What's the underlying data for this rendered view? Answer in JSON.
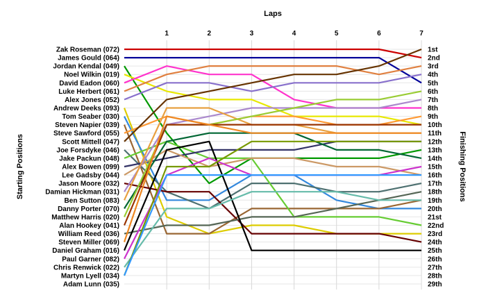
{
  "chart_data": {
    "type": "line",
    "title": "Laps",
    "xlabel": "Laps",
    "ylabel_left": "Starting Positions",
    "ylabel_right": "Finishing Positions",
    "x": [
      0,
      1,
      2,
      3,
      4,
      5,
      6,
      7
    ],
    "x_tick_labels": [
      "1",
      "2",
      "3",
      "4",
      "5",
      "6",
      "7"
    ],
    "ylim": [
      1,
      29
    ],
    "y_inverted": true,
    "grid": true,
    "finishing_position_labels": [
      "1st",
      "2nd",
      "3rd",
      "4th",
      "5th",
      "6th",
      "7th",
      "8th",
      "9th",
      "10th",
      "11th",
      "12th",
      "13th",
      "14th",
      "15th",
      "16th",
      "17th",
      "18th",
      "19th",
      "20th",
      "21st",
      "22nd",
      "23rd",
      "24th",
      "25th",
      "26th",
      "27th",
      "28th",
      "29th"
    ],
    "series": [
      {
        "name": "Zak Roseman (072)",
        "color": "#cc0000",
        "values": [
          1,
          1,
          1,
          1,
          1,
          1,
          1,
          2
        ]
      },
      {
        "name": "James Gould (064)",
        "color": "#000099",
        "values": [
          2,
          2,
          2,
          2,
          2,
          2,
          2,
          5
        ]
      },
      {
        "name": "Jordan Kendal (049)",
        "color": "#009900",
        "values": [
          3,
          11,
          17,
          14,
          14,
          14,
          14,
          13
        ]
      },
      {
        "name": "Noel Wilkin (019)",
        "color": "#e8e800",
        "values": [
          4,
          6,
          7,
          7,
          9,
          9,
          9,
          10
        ]
      },
      {
        "name": "David Eadon (060)",
        "color": "#ff33cc",
        "values": [
          5,
          3,
          4,
          4,
          7,
          8,
          8,
          8
        ]
      },
      {
        "name": "Luke Herbert (061)",
        "color": "#e08040",
        "values": [
          6,
          4,
          3,
          3,
          3,
          3,
          4,
          3
        ]
      },
      {
        "name": "Alex Jones (052)",
        "color": "#8870cc",
        "values": [
          7,
          5,
          5,
          6,
          5,
          5,
          5,
          4
        ]
      },
      {
        "name": "Andrew Deeks (093)",
        "color": "#ddcc00",
        "values": [
          8,
          21,
          23,
          22,
          22,
          23,
          23,
          23
        ]
      },
      {
        "name": "Tom Seaber (030)",
        "color": "#3388dd",
        "values": [
          9,
          19,
          19,
          16,
          16,
          19,
          20,
          20
        ]
      },
      {
        "name": "Steven Napier (039)",
        "color": "#996633",
        "values": [
          10,
          23,
          23,
          20,
          20,
          20,
          20,
          19
        ]
      },
      {
        "name": "Steve Sawford (055)",
        "color": "#ff9933",
        "values": [
          11,
          9,
          10,
          9,
          9,
          10,
          10,
          9
        ]
      },
      {
        "name": "Scott Mittell (047)",
        "color": "#663300",
        "values": [
          12,
          7,
          6,
          5,
          4,
          4,
          3,
          1
        ]
      },
      {
        "name": "Joe Forsdyke (046)",
        "color": "#4d7070",
        "values": [
          13,
          18,
          20,
          17,
          17,
          18,
          18,
          17
        ]
      },
      {
        "name": "Jake Packun (048)",
        "color": "#66cc33",
        "values": [
          14,
          12,
          14,
          14,
          21,
          21,
          21,
          22
        ]
      },
      {
        "name": "Alex Bowen (099)",
        "color": "#333366",
        "values": [
          15,
          14,
          13,
          13,
          13,
          12,
          12,
          12
        ]
      },
      {
        "name": "Lee Gadsby (044)",
        "color": "#cc9966",
        "values": [
          16,
          13,
          15,
          14,
          14,
          15,
          15,
          16
        ]
      },
      {
        "name": "Jason Moore (032)",
        "color": "#660000",
        "values": [
          17,
          18,
          18,
          23,
          23,
          23,
          23,
          24
        ]
      },
      {
        "name": "Damian Hickman (031)",
        "color": "#aa88cc",
        "values": [
          18,
          10,
          9,
          8,
          8,
          8,
          8,
          7
        ]
      },
      {
        "name": "Ben Sutton (083)",
        "color": "#e8a040",
        "values": [
          19,
          8,
          8,
          10,
          10,
          11,
          11,
          11
        ]
      },
      {
        "name": "Danny Porter (070)",
        "color": "#006633",
        "values": [
          20,
          12,
          11,
          11,
          11,
          13,
          13,
          14
        ]
      },
      {
        "name": "Matthew Harris (020)",
        "color": "#99cc33",
        "values": [
          21,
          10,
          10,
          9,
          8,
          7,
          7,
          6
        ]
      },
      {
        "name": "Alan Hookey (041)",
        "color": "#993300",
        "values": [
          22,
          10,
          10,
          10,
          10,
          10,
          10,
          10
        ]
      },
      {
        "name": "William Reed (036)",
        "color": "#556655",
        "values": [
          23,
          22,
          22,
          21,
          21,
          20,
          19,
          18
        ]
      },
      {
        "name": "Steven Miller (069)",
        "color": "#ee8822",
        "values": [
          24,
          9,
          10,
          11,
          11,
          11,
          11,
          11
        ]
      },
      {
        "name": "Daniel Graham (016)",
        "color": "#000000",
        "values": [
          25,
          13,
          12,
          25,
          25,
          25,
          25,
          25
        ]
      },
      {
        "name": "Paul Garner (082)",
        "color": "#cc33cc",
        "values": [
          26,
          16,
          14,
          16,
          16,
          16,
          16,
          15
        ]
      },
      {
        "name": "Chris Renwick (022)",
        "color": "#66bbaa",
        "values": [
          27,
          20,
          20,
          18,
          18,
          18,
          19,
          19
        ]
      },
      {
        "name": "Martyn Lyell (034)",
        "color": "#779900",
        "values": [
          28,
          15,
          15,
          12,
          12,
          12,
          12,
          12
        ]
      },
      {
        "name": "Adam Lunn (035)",
        "color": "#3399ff",
        "values": [
          28,
          16,
          16,
          16,
          16,
          16,
          16,
          16
        ]
      }
    ]
  }
}
